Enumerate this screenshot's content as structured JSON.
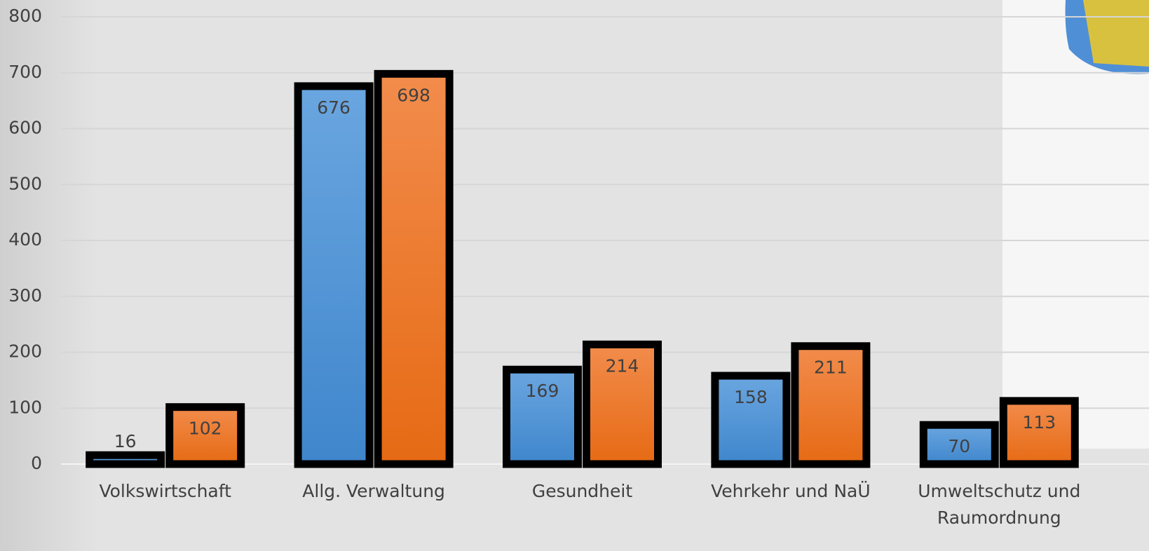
{
  "chart_data": {
    "type": "bar",
    "categories": [
      "Volkswirtschaft",
      "Allg. Verwaltung",
      "Gesundheit",
      "Vehrkehr und NaÜ",
      "Umweltschutz und Raumordnung"
    ],
    "series": [
      {
        "color": "#4a90d9",
        "values": [
          16,
          676,
          169,
          158,
          70
        ]
      },
      {
        "color": "#ee7622",
        "values": [
          102,
          698,
          214,
          211,
          113
        ]
      }
    ],
    "ylim": [
      0,
      800
    ],
    "yticks": [
      0,
      100,
      200,
      300,
      400,
      500,
      600,
      700,
      800
    ],
    "grid": true
  }
}
